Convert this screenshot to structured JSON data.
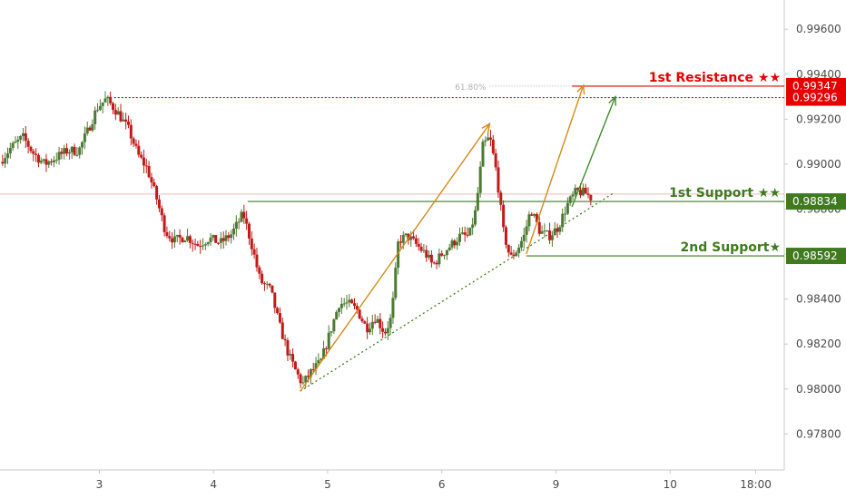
{
  "chart_data": {
    "type": "candlestick",
    "title": "",
    "y_ticks": [
      "0.99600",
      "0.99400",
      "0.99200",
      "0.99000",
      "0.98800",
      "0.98600",
      "0.98400",
      "0.98200",
      "0.98000",
      "0.97800"
    ],
    "y_tick_values": [
      0.996,
      0.994,
      0.992,
      0.99,
      0.988,
      0.986,
      0.984,
      0.982,
      0.98,
      0.978
    ],
    "x_ticks": [
      "3",
      "4",
      "5",
      "6",
      "9",
      "10",
      "18:00"
    ],
    "x_tick_positions": [
      1,
      2,
      3,
      4,
      5,
      6,
      6.75
    ],
    "x_range": [
      0.13,
      7.0
    ],
    "ylim": [
      0.9764,
      0.9973
    ],
    "grid": false,
    "colors": {
      "up": "#4c7a33",
      "down": "#c21a1a",
      "resistance": "#e60000",
      "support": "#3f7a1f",
      "fib": "#b0b0b0",
      "arrow_orange": "#d4891a",
      "arrow_green": "#3f8a2a",
      "trend": "#3f7a1f"
    },
    "fib_label": "61.80%",
    "levels": [
      {
        "name": "resistance-1",
        "label": "1st Resistance ★★",
        "price_label": "0.99347",
        "price": 0.99347,
        "style": "solid",
        "color": "#e60000",
        "x_start": 5.14
      },
      {
        "name": "resistance-dotted",
        "label": "",
        "price_label": "0.99296",
        "price": 0.99296,
        "style": "dotted",
        "color": "#e60000",
        "x_start": 1.13
      },
      {
        "name": "support-1",
        "label": "1st Support ★★",
        "price_label": "0.98834",
        "price": 0.98834,
        "style": "solid",
        "color": "#3f7a1f",
        "x_start": 2.3
      },
      {
        "name": "support-2",
        "label": "2nd Support★",
        "price_label": "0.98592",
        "price": 0.98592,
        "style": "solid",
        "color": "#3f7a1f",
        "x_start": 4.74
      }
    ],
    "current_price": 0.98867,
    "trendline": {
      "from": [
        2.76,
        0.9799
      ],
      "to": [
        5.5,
        0.9887
      ]
    },
    "arrows": [
      {
        "color": "#d4891a",
        "from": [
          2.76,
          0.9799
        ],
        "to": [
          4.42,
          0.9918
        ]
      },
      {
        "color": "#d4891a",
        "from": [
          4.74,
          0.986
        ],
        "to": [
          5.24,
          0.9935
        ]
      },
      {
        "color": "#3f8a2a",
        "from": [
          5.14,
          0.9881
        ],
        "to": [
          5.52,
          0.993
        ]
      }
    ],
    "path": [
      [
        0.13,
        0.9901
      ],
      [
        0.22,
        0.9907
      ],
      [
        0.33,
        0.9912
      ],
      [
        0.42,
        0.9905
      ],
      [
        0.52,
        0.99
      ],
      [
        0.62,
        0.9903
      ],
      [
        0.72,
        0.9906
      ],
      [
        0.82,
        0.9906
      ],
      [
        0.9,
        0.9915
      ],
      [
        0.98,
        0.9925
      ],
      [
        1.06,
        0.9929
      ],
      [
        1.16,
        0.9923
      ],
      [
        1.26,
        0.9915
      ],
      [
        1.34,
        0.9904
      ],
      [
        1.42,
        0.9898
      ],
      [
        1.5,
        0.9885
      ],
      [
        1.58,
        0.987
      ],
      [
        1.66,
        0.9866
      ],
      [
        1.76,
        0.9868
      ],
      [
        1.86,
        0.9864
      ],
      [
        1.96,
        0.9867
      ],
      [
        2.06,
        0.9865
      ],
      [
        2.16,
        0.9869
      ],
      [
        2.26,
        0.9878
      ],
      [
        2.33,
        0.9865
      ],
      [
        2.41,
        0.9848
      ],
      [
        2.5,
        0.9844
      ],
      [
        2.58,
        0.9828
      ],
      [
        2.66,
        0.9815
      ],
      [
        2.72,
        0.9808
      ],
      [
        2.78,
        0.9802
      ],
      [
        2.86,
        0.9808
      ],
      [
        2.94,
        0.9812
      ],
      [
        3.02,
        0.9825
      ],
      [
        3.1,
        0.9838
      ],
      [
        3.18,
        0.9838
      ],
      [
        3.26,
        0.9835
      ],
      [
        3.34,
        0.9827
      ],
      [
        3.42,
        0.9832
      ],
      [
        3.5,
        0.9825
      ],
      [
        3.56,
        0.9832
      ],
      [
        3.62,
        0.9866
      ],
      [
        3.7,
        0.9868
      ],
      [
        3.78,
        0.9864
      ],
      [
        3.86,
        0.986
      ],
      [
        3.92,
        0.9855
      ],
      [
        4.0,
        0.986
      ],
      [
        4.08,
        0.9864
      ],
      [
        4.16,
        0.9868
      ],
      [
        4.24,
        0.9868
      ],
      [
        4.3,
        0.988
      ],
      [
        4.36,
        0.9908
      ],
      [
        4.42,
        0.9912
      ],
      [
        4.48,
        0.9896
      ],
      [
        4.54,
        0.987
      ],
      [
        4.6,
        0.9858
      ],
      [
        4.66,
        0.9862
      ],
      [
        4.72,
        0.9868
      ],
      [
        4.78,
        0.988
      ],
      [
        4.86,
        0.987
      ],
      [
        4.94,
        0.9868
      ],
      [
        5.02,
        0.9872
      ],
      [
        5.1,
        0.9882
      ],
      [
        5.18,
        0.9888
      ],
      [
        5.26,
        0.9887
      ],
      [
        5.31,
        0.9885
      ]
    ]
  }
}
